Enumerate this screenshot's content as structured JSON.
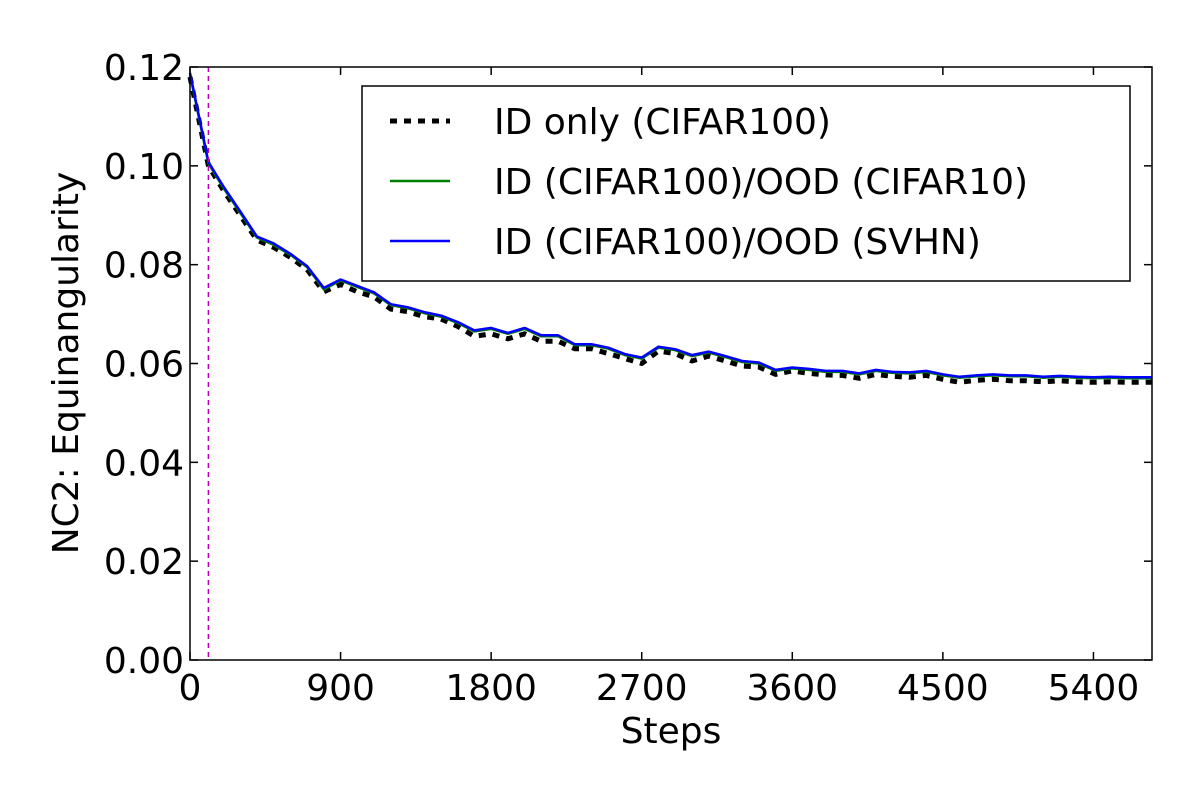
{
  "chart_data": {
    "type": "line",
    "xlabel": "Steps",
    "ylabel": "NC2: Equinangularity",
    "xlim": [
      0,
      5750
    ],
    "ylim": [
      0.0,
      0.12
    ],
    "xticks": [
      0,
      900,
      1800,
      2700,
      3600,
      4500,
      5400
    ],
    "xtick_labels": [
      "0",
      "900",
      "1800",
      "2700",
      "3600",
      "4500",
      "5400"
    ],
    "yticks": [
      0.0,
      0.02,
      0.04,
      0.06,
      0.08,
      0.1,
      0.12
    ],
    "ytick_labels": [
      "0.00",
      "0.02",
      "0.04",
      "0.06",
      "0.08",
      "0.10",
      "0.12"
    ],
    "grid": false,
    "legend_position": "top-right",
    "vline": {
      "x": 110,
      "color": "#bf00bf",
      "style": "dashed"
    },
    "x": [
      0,
      110,
      200,
      300,
      400,
      500,
      600,
      700,
      800,
      900,
      1000,
      1100,
      1200,
      1300,
      1400,
      1500,
      1600,
      1700,
      1800,
      1900,
      2000,
      2100,
      2200,
      2300,
      2400,
      2500,
      2600,
      2700,
      2800,
      2900,
      3000,
      3100,
      3200,
      3300,
      3400,
      3500,
      3600,
      3700,
      3800,
      3900,
      4000,
      4100,
      4200,
      4300,
      4400,
      4500,
      4600,
      4700,
      4800,
      4900,
      5000,
      5100,
      5200,
      5300,
      5400,
      5500,
      5600,
      5700,
      5750
    ],
    "series": [
      {
        "name": "ID only (CIFAR100)",
        "color": "#000000",
        "style": "dotted",
        "values": [
          0.118,
          0.1,
          0.095,
          0.09,
          0.085,
          0.0835,
          0.0815,
          0.079,
          0.0745,
          0.076,
          0.0745,
          0.0735,
          0.071,
          0.0705,
          0.0695,
          0.069,
          0.0675,
          0.0655,
          0.066,
          0.065,
          0.066,
          0.0645,
          0.0645,
          0.063,
          0.063,
          0.062,
          0.061,
          0.06,
          0.0625,
          0.062,
          0.0605,
          0.0615,
          0.0605,
          0.0595,
          0.0593,
          0.0578,
          0.0585,
          0.058,
          0.0577,
          0.0576,
          0.057,
          0.0578,
          0.0574,
          0.0572,
          0.0576,
          0.0568,
          0.0562,
          0.0566,
          0.0568,
          0.0565,
          0.0565,
          0.0563,
          0.0565,
          0.0563,
          0.0562,
          0.0563,
          0.0562,
          0.0562,
          0.0562
        ]
      },
      {
        "name": "ID (CIFAR100)/OOD (CIFAR10)",
        "color": "#007f00",
        "style": "solid",
        "values": [
          0.1185,
          0.1005,
          0.0955,
          0.0905,
          0.0855,
          0.084,
          0.082,
          0.0795,
          0.075,
          0.0768,
          0.0755,
          0.0742,
          0.0718,
          0.0712,
          0.0702,
          0.0695,
          0.0682,
          0.0665,
          0.067,
          0.066,
          0.067,
          0.0655,
          0.0655,
          0.0637,
          0.0637,
          0.063,
          0.0617,
          0.061,
          0.0632,
          0.0627,
          0.0615,
          0.0622,
          0.0613,
          0.0603,
          0.06,
          0.0585,
          0.059,
          0.0587,
          0.0583,
          0.0583,
          0.0578,
          0.0585,
          0.0581,
          0.058,
          0.0583,
          0.0576,
          0.0571,
          0.0574,
          0.0576,
          0.0574,
          0.0574,
          0.0571,
          0.0573,
          0.0571,
          0.057,
          0.0571,
          0.057,
          0.057,
          0.057
        ]
      },
      {
        "name": "ID (CIFAR100)/OOD (SVHN)",
        "color": "#0000ff",
        "style": "solid",
        "values": [
          0.1188,
          0.1008,
          0.0958,
          0.0908,
          0.0857,
          0.0843,
          0.0822,
          0.0797,
          0.0753,
          0.077,
          0.0757,
          0.0744,
          0.072,
          0.0714,
          0.0704,
          0.0697,
          0.0684,
          0.0667,
          0.0672,
          0.0662,
          0.0672,
          0.0657,
          0.0657,
          0.0639,
          0.0639,
          0.0632,
          0.0619,
          0.0612,
          0.0634,
          0.0629,
          0.0617,
          0.0624,
          0.0615,
          0.0605,
          0.0602,
          0.0587,
          0.0592,
          0.0589,
          0.0585,
          0.0585,
          0.058,
          0.0587,
          0.0583,
          0.0582,
          0.0585,
          0.0578,
          0.0573,
          0.0576,
          0.0578,
          0.0576,
          0.0576,
          0.0573,
          0.0575,
          0.0573,
          0.0572,
          0.0573,
          0.0572,
          0.0572,
          0.0572
        ]
      }
    ]
  }
}
